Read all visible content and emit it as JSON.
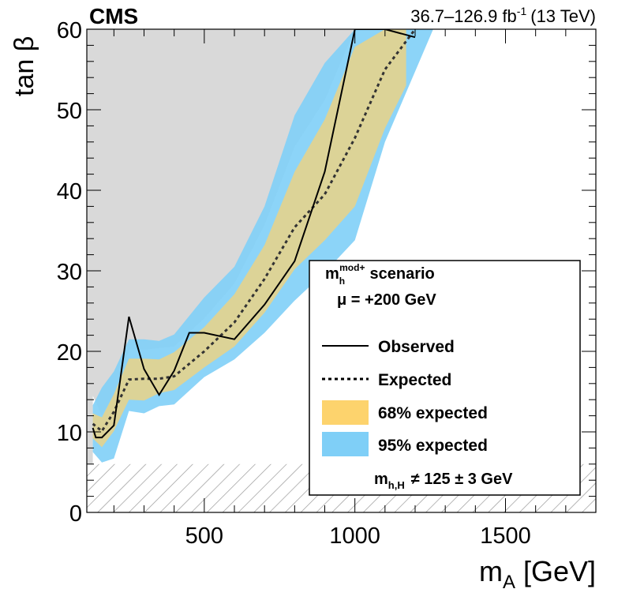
{
  "chart_data": {
    "type": "area",
    "experiment_label": "CMS",
    "lumi_label": "36.7–126.9 fb",
    "lumi_exponent": "-1",
    "energy_label": "(13 TeV)",
    "xlabel_main": "m",
    "xlabel_sub": "A",
    "xlabel_unit": "[GeV]",
    "ylabel": "tan β",
    "xlim": [
      110,
      1800
    ],
    "ylim": [
      0,
      60
    ],
    "x_ticks": [
      500,
      1000,
      1500
    ],
    "y_ticks": [
      0,
      10,
      20,
      30,
      40,
      50,
      60
    ],
    "x_tick_labels": [
      "500",
      "1000",
      "1500"
    ],
    "y_tick_labels": [
      "0",
      "10",
      "20",
      "30",
      "40",
      "50",
      "60"
    ],
    "legend": {
      "scenario_main": "m",
      "scenario_sub": "h",
      "scenario_sup": "mod+",
      "scenario_word": "scenario",
      "mu_label": "μ = +200 GeV",
      "entries": [
        "Observed",
        "Expected",
        "68% expected",
        "95% expected"
      ],
      "hatch_main": "m",
      "hatch_sub": "h,H",
      "hatch_text": "≠ 125 ± 3 GeV"
    },
    "colors": {
      "excluded": "#d9d9d9",
      "band68": "#fdd36d",
      "band95": "#7fcff7",
      "observed": "#000000",
      "expected": "#333333"
    },
    "hatched_region": {
      "ylim": [
        0,
        6
      ]
    },
    "observed": {
      "x": [
        130,
        140,
        160,
        200,
        250,
        300,
        350,
        400,
        450,
        500,
        600,
        700,
        800,
        900,
        1000,
        1100,
        1200
      ],
      "y": [
        10.5,
        9.3,
        9.3,
        10.8,
        24.3,
        17.8,
        14.6,
        17.6,
        22.3,
        22.3,
        21.5,
        25.8,
        31.2,
        42.3,
        60.0,
        60.0,
        59.0
      ]
    },
    "expected": {
      "x": [
        130,
        160,
        200,
        250,
        300,
        350,
        400,
        500,
        600,
        700,
        800,
        900,
        1000,
        1100,
        1200
      ],
      "y": [
        11.0,
        10.1,
        12.5,
        16.5,
        16.6,
        16.6,
        16.9,
        20.0,
        23.6,
        29.0,
        35.4,
        39.5,
        46.5,
        55.0,
        60.0
      ]
    },
    "band68": {
      "x": [
        130,
        160,
        200,
        250,
        300,
        350,
        400,
        500,
        600,
        700,
        800,
        900,
        1000,
        1100,
        1170
      ],
      "lower": [
        9.2,
        8.1,
        10.1,
        14.0,
        13.9,
        14.8,
        15.2,
        18.0,
        20.6,
        24.8,
        30.2,
        33.8,
        38.0,
        47.7,
        53.0
      ],
      "upper": [
        12.3,
        11.8,
        14.7,
        19.1,
        19.1,
        19.0,
        19.9,
        23.0,
        27.1,
        33.2,
        42.3,
        48.8,
        57.8,
        60.0,
        60.0
      ]
    },
    "band95": {
      "x": [
        130,
        160,
        200,
        250,
        300,
        350,
        400,
        500,
        600,
        700,
        800,
        900,
        1000,
        1100,
        1260
      ],
      "lower": [
        7.5,
        6.2,
        6.7,
        12.6,
        12.3,
        13.2,
        13.4,
        16.8,
        19.0,
        22.3,
        26.3,
        29.8,
        33.8,
        46.0,
        60.0
      ],
      "upper": [
        13.3,
        15.5,
        17.5,
        21.5,
        21.5,
        21.3,
        22.1,
        26.7,
        30.5,
        38.0,
        49.3,
        55.8,
        60.0,
        60.0,
        60.0
      ]
    },
    "excluded_boundary": {
      "x": [
        130,
        160,
        200,
        250,
        300,
        350,
        400,
        500,
        600,
        700,
        800,
        900,
        1000,
        1100
      ],
      "y": [
        14.5,
        12.0,
        14.6,
        20.2,
        20.2,
        20.4,
        20.6,
        24.1,
        28.4,
        35.7,
        45.4,
        51.2,
        60.0,
        60.0
      ]
    }
  }
}
